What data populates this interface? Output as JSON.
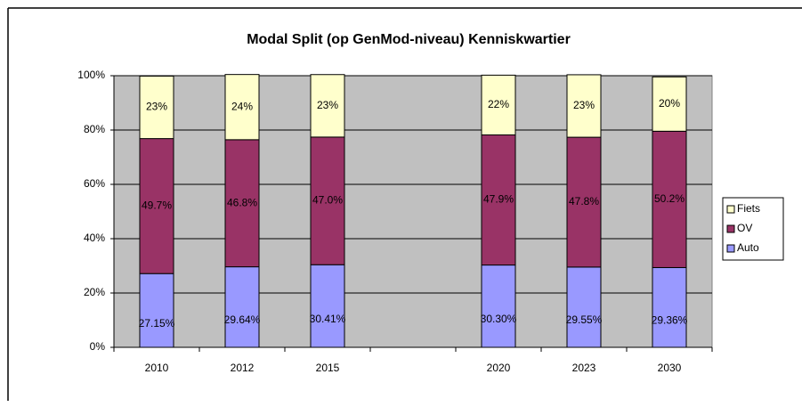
{
  "chart_data": {
    "type": "stacked_bar",
    "title": "Modal Split (op GenMod-niveau) Kenniskwartier",
    "categories": [
      "2010",
      "2012",
      "2015",
      null,
      "2020",
      "2023",
      "2030"
    ],
    "series": [
      {
        "name": "Auto",
        "color": "#9999ff",
        "values": [
          27.15,
          29.64,
          30.41,
          null,
          30.3,
          29.55,
          29.36
        ],
        "value_labels": [
          "27.15%",
          "29.64%",
          "30.41%",
          null,
          "30.30%",
          "29.55%",
          "29.36%"
        ]
      },
      {
        "name": "OV",
        "color": "#993366",
        "values": [
          49.7,
          46.8,
          47.0,
          null,
          47.9,
          47.8,
          50.2
        ],
        "value_labels": [
          "49.7%",
          "46.8%",
          "47.0%",
          null,
          "47.9%",
          "47.8%",
          "50.2%"
        ]
      },
      {
        "name": "Fiets",
        "color": "#ffffcc",
        "values": [
          23,
          24,
          23,
          null,
          22,
          23,
          20
        ],
        "value_labels": [
          "23%",
          "24%",
          "23%",
          null,
          "22%",
          "23%",
          "20%"
        ]
      }
    ],
    "ylim": [
      0,
      100
    ],
    "yticks": [
      {
        "value": 0,
        "label": "0%"
      },
      {
        "value": 20,
        "label": "20%"
      },
      {
        "value": 40,
        "label": "40%"
      },
      {
        "value": 60,
        "label": "60%"
      },
      {
        "value": 80,
        "label": "80%"
      },
      {
        "value": 100,
        "label": "100%"
      }
    ],
    "grid": true,
    "legend": "right"
  }
}
